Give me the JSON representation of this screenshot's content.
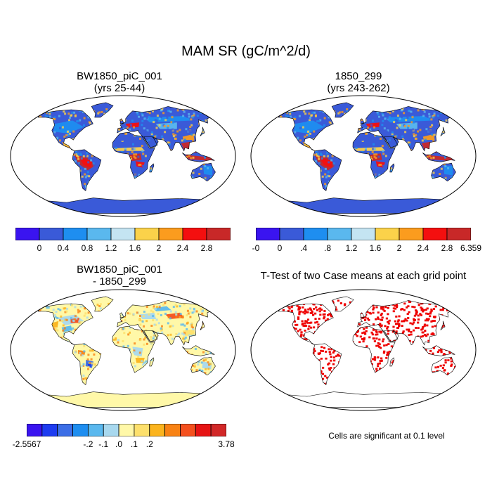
{
  "title": "MAM SR (gC/m^2/d)",
  "panels": [
    {
      "id": "p1",
      "title_line1": "BW1850_piC_001",
      "title_line2": "(yrs 25-44)",
      "style": "mean"
    },
    {
      "id": "p2",
      "title_line1": "1850_299",
      "title_line2": "(yrs 243-262)",
      "style": "mean"
    },
    {
      "id": "p3",
      "title_line1": "BW1850_piC_001",
      "title_line2": "- 1850_299",
      "style": "diff"
    },
    {
      "id": "p4",
      "title_line1": "T-Test of two Case means at each grid point",
      "title_line2": "",
      "style": "ttest"
    }
  ],
  "colorbars": {
    "top_left": {
      "colors": [
        "#3a14f0",
        "#3a5ad8",
        "#1e8ef0",
        "#5ab8ee",
        "#c4e4f2",
        "#fbd24a",
        "#fb9c1e",
        "#f40f0f",
        "#c82828"
      ],
      "labels": [
        "0",
        "0.4",
        "0.8",
        "1.2",
        "1.6",
        "2",
        "2.4",
        "2.8"
      ]
    },
    "top_right": {
      "colors": [
        "#3a14f0",
        "#3a5ad8",
        "#1e8ef0",
        "#5ab8ee",
        "#c4e4f2",
        "#fbd24a",
        "#fb9c1e",
        "#f40f0f",
        "#c82828"
      ],
      "labels": [
        "-0",
        "0",
        ".4",
        ".8",
        "1.2",
        "1.6",
        "2",
        "2.4",
        "2.8",
        "6.359"
      ]
    },
    "bottom": {
      "colors": [
        "#3a14f0",
        "#1e3cf0",
        "#3c6ee6",
        "#1e8ef0",
        "#5ab8ee",
        "#a8d8ee",
        "#fff8a8",
        "#fde06c",
        "#fbb41e",
        "#f88214",
        "#f4501e",
        "#e61414",
        "#d22828"
      ],
      "labels": [
        "-2.5567",
        "-.2",
        "-.1",
        ".0",
        ".1",
        ".2",
        "3.78"
      ]
    }
  },
  "note": "Cells are significant at 0.1 level"
}
